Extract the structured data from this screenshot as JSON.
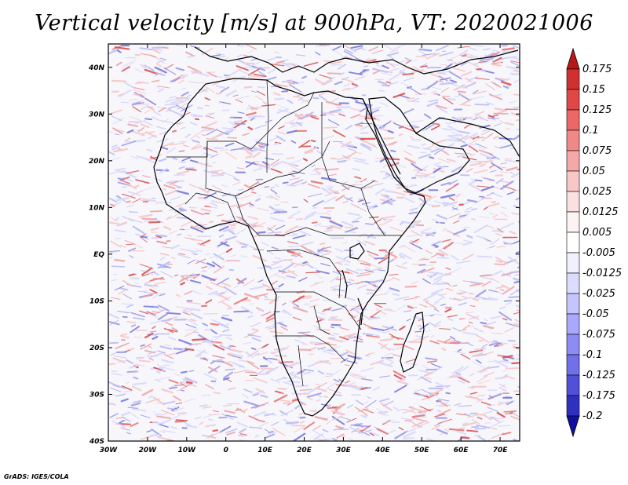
{
  "title": "Vertical velocity [m/s] at 900hPa, VT: 2020021006",
  "credit": "GrADS: IGES/COLA",
  "map": {
    "lon_range": [
      -30,
      75
    ],
    "lat_range": [
      -40,
      45
    ],
    "x_ticks": [
      "30W",
      "20W",
      "10W",
      "0",
      "10E",
      "20E",
      "30E",
      "40E",
      "50E",
      "60E",
      "70E"
    ],
    "x_tick_lons": [
      -30,
      -20,
      -10,
      0,
      10,
      20,
      30,
      40,
      50,
      60,
      70
    ],
    "y_ticks": [
      "40N",
      "30N",
      "20N",
      "10N",
      "EQ",
      "10S",
      "20S",
      "30S",
      "40S"
    ],
    "y_tick_lats": [
      40,
      30,
      20,
      10,
      0,
      -10,
      -20,
      -30,
      -40
    ]
  },
  "colorbar": {
    "labels": [
      "0.175",
      "0.15",
      "0.125",
      "0.1",
      "0.075",
      "0.05",
      "0.025",
      "0.0125",
      "0.005",
      "-0.005",
      "-0.0125",
      "-0.025",
      "-0.05",
      "-0.075",
      "-0.1",
      "-0.125",
      "-0.175",
      "-0.2"
    ],
    "colors": [
      "#d03030",
      "#e04848",
      "#ec6868",
      "#f08888",
      "#f4a8a8",
      "#f8c8c8",
      "#fbe0e0",
      "#fff2f2",
      "#ffffff",
      "#f0f0ff",
      "#dcdcff",
      "#c4c4ff",
      "#a8a8ff",
      "#8c8cf4",
      "#7070e8",
      "#5050d8",
      "#3030c0",
      "#1818a8"
    ],
    "top_arrow_color": "#b81818",
    "bottom_arrow_color": "#1010a0"
  },
  "field_colors": {
    "positive": [
      "#f7c4c4",
      "#f0a0a0",
      "#e57070",
      "#d84848"
    ],
    "negative": [
      "#d6d6fb",
      "#b8b8f3",
      "#9696e8",
      "#7474dc"
    ]
  }
}
